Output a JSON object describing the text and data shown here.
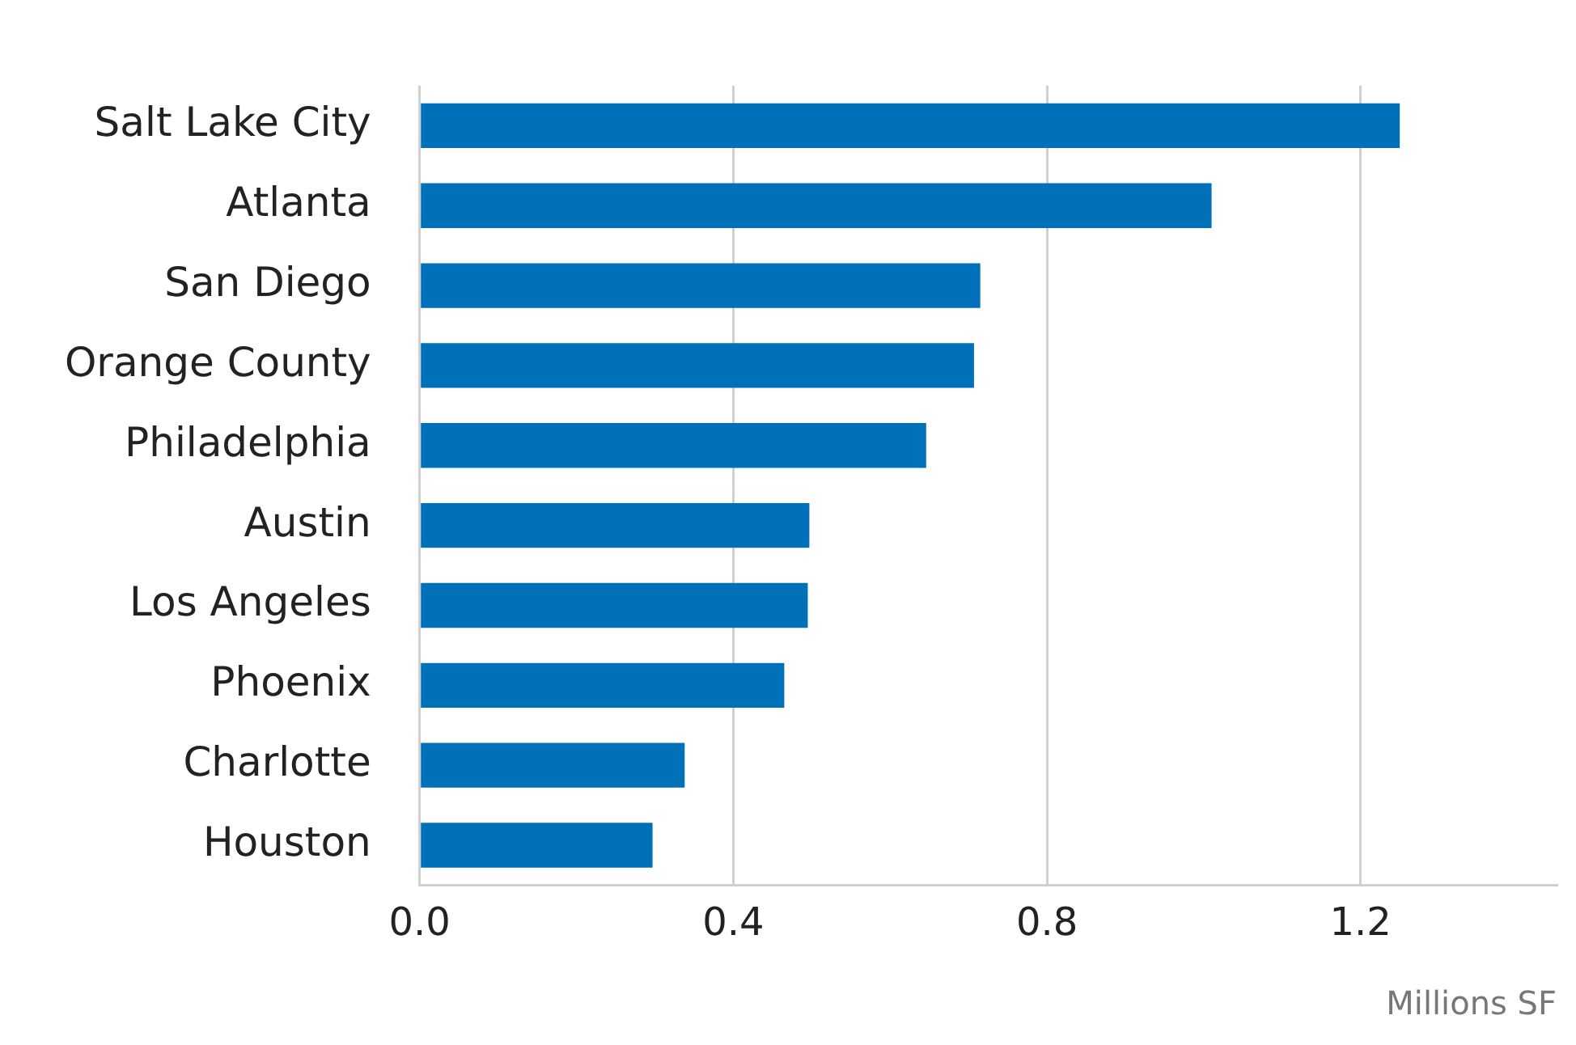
{
  "chart_data": {
    "type": "bar",
    "orientation": "horizontal",
    "xlabel": "Millions SF",
    "categories": [
      "Salt Lake City",
      "Atlanta",
      "San Diego",
      "Orange County",
      "Philadelphia",
      "Austin",
      "Los Angeles",
      "Phoenix",
      "Charlotte",
      "Houston"
    ],
    "values": [
      1.25,
      1.01,
      0.715,
      0.707,
      0.646,
      0.497,
      0.495,
      0.465,
      0.338,
      0.297
    ],
    "color": "#0070b8",
    "xlim": [
      0,
      1.45
    ],
    "xticks": [
      {
        "value": 0,
        "label": "0.0"
      },
      0.4,
      0.8,
      1.2
    ],
    "grid": "x",
    "legend": false
  }
}
